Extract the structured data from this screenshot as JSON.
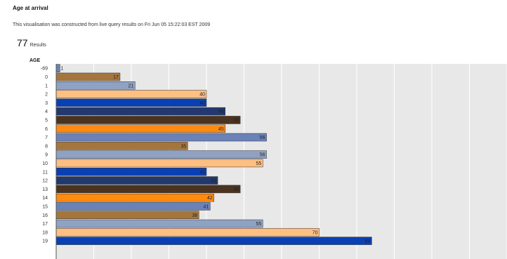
{
  "header": {
    "title": "Age at arrival",
    "subtitle": "This visualisation was constructed from live query results on Fri Jun 05 15:22:03 EST 2009",
    "results_count": "77",
    "results_label": "Results"
  },
  "colors": {
    "plot_bg": "#e8e8e8",
    "grid": "#ffffff",
    "palette": [
      "#6b82b8",
      "#a4763e",
      "#8fa2c4",
      "#fdbf82",
      "#0b40b5",
      "#22386f",
      "#4b3320",
      "#ff8a10"
    ]
  },
  "chart_data": {
    "type": "bar",
    "orientation": "horizontal",
    "title": "",
    "ylabel": "AGE",
    "xlabel": "",
    "xlim": [
      0,
      120
    ],
    "grid": true,
    "categories": [
      "-69",
      "0",
      "1",
      "2",
      "3",
      "4",
      "5",
      "6",
      "7",
      "8",
      "9",
      "10",
      "11",
      "12",
      "13",
      "14",
      "15",
      "16",
      "17",
      "18",
      "19"
    ],
    "values": [
      1,
      17,
      21,
      40,
      40,
      45,
      49,
      45,
      56,
      35,
      56,
      55,
      40,
      43,
      49,
      42,
      41,
      38,
      55,
      70,
      84
    ],
    "labels": [
      "1",
      "17",
      "21",
      "40",
      "40",
      "45",
      "49",
      "45",
      "56",
      "35",
      "56",
      "55",
      "40",
      "43",
      "49",
      "42",
      "41",
      "38",
      "55",
      "70",
      "84"
    ]
  }
}
